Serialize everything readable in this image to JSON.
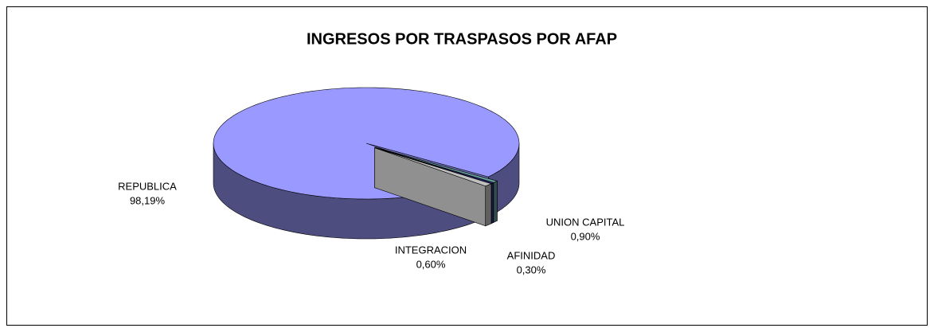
{
  "chart_data": {
    "type": "pie",
    "title": "INGRESOS POR TRASPASOS POR AFAP",
    "categories": [
      "REPUBLICA",
      "INTEGRACION",
      "AFINIDAD",
      "UNION CAPITAL"
    ],
    "values": [
      98.19,
      0.6,
      0.3,
      0.9
    ],
    "value_labels": [
      "98,19%",
      "0,60%",
      "0,30%",
      "0,90%"
    ],
    "colors": [
      "#9999ff",
      "#669999",
      "#333399",
      "#c0c0c0"
    ]
  }
}
